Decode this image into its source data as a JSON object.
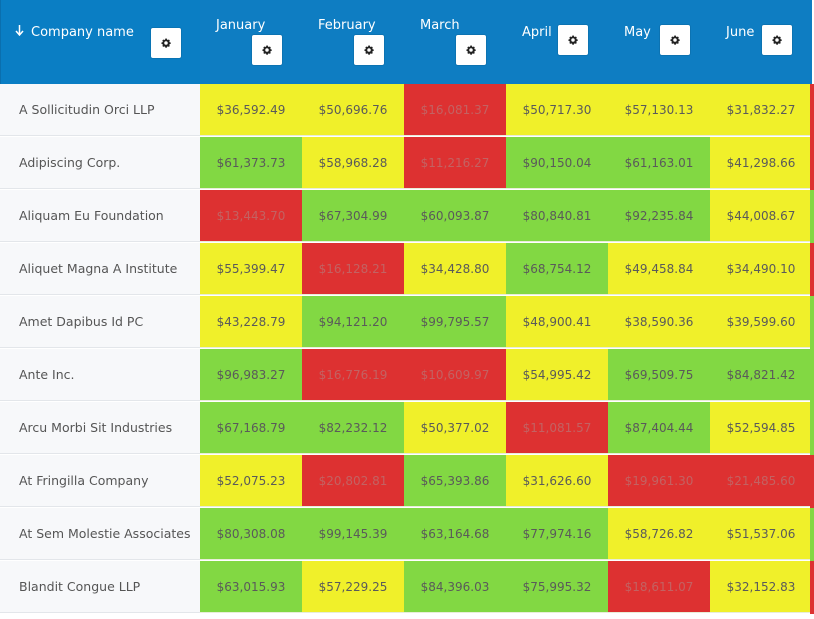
{
  "header": {
    "company_label": "Company name",
    "sort_icon": "arrow-down-icon",
    "gear_icon": "gear-icon",
    "months": [
      "January",
      "February",
      "March",
      "April",
      "May",
      "June"
    ]
  },
  "colors": {
    "header_bg": "#0e7dc2",
    "green": "#82d843",
    "yellow": "#f0f02a",
    "red": "#dd3131"
  },
  "rows": [
    {
      "company": "A Sollicitudin Orci LLP",
      "values": [
        "$36,592.49",
        "$50,696.76",
        "$16,081.37",
        "$50,717.30",
        "$57,130.13",
        "$31,832.27"
      ],
      "status": [
        "yellow",
        "yellow",
        "red",
        "yellow",
        "yellow",
        "yellow"
      ]
    },
    {
      "company": "Adipiscing Corp.",
      "values": [
        "$61,373.73",
        "$58,968.28",
        "$11,216.27",
        "$90,150.04",
        "$61,163.01",
        "$41,298.66"
      ],
      "status": [
        "green",
        "yellow",
        "red",
        "green",
        "green",
        "yellow"
      ]
    },
    {
      "company": "Aliquam Eu Foundation",
      "values": [
        "$13,443.70",
        "$67,304.99",
        "$60,093.87",
        "$80,840.81",
        "$92,235.84",
        "$44,008.67"
      ],
      "status": [
        "red",
        "green",
        "green",
        "green",
        "green",
        "yellow"
      ]
    },
    {
      "company": "Aliquet Magna A Institute",
      "values": [
        "$55,399.47",
        "$16,128.21",
        "$34,428.80",
        "$68,754.12",
        "$49,458.84",
        "$34,490.10"
      ],
      "status": [
        "yellow",
        "red",
        "yellow",
        "green",
        "yellow",
        "yellow"
      ]
    },
    {
      "company": "Amet Dapibus Id PC",
      "values": [
        "$43,228.79",
        "$94,121.20",
        "$99,795.57",
        "$48,900.41",
        "$38,590.36",
        "$39,599.60"
      ],
      "status": [
        "yellow",
        "green",
        "green",
        "yellow",
        "yellow",
        "yellow"
      ]
    },
    {
      "company": "Ante Inc.",
      "values": [
        "$96,983.27",
        "$16,776.19",
        "$10,609.97",
        "$54,995.42",
        "$69,509.75",
        "$84,821.42"
      ],
      "status": [
        "green",
        "red",
        "red",
        "yellow",
        "green",
        "green"
      ]
    },
    {
      "company": "Arcu Morbi Sit Industries",
      "values": [
        "$67,168.79",
        "$82,232.12",
        "$50,377.02",
        "$11,081.57",
        "$87,404.44",
        "$52,594.85"
      ],
      "status": [
        "green",
        "green",
        "yellow",
        "red",
        "green",
        "yellow"
      ]
    },
    {
      "company": "At Fringilla Company",
      "values": [
        "$52,075.23",
        "$20,802.81",
        "$65,393.86",
        "$31,626.60",
        "$19,961.30",
        "$21,485.60"
      ],
      "status": [
        "yellow",
        "red",
        "green",
        "yellow",
        "red",
        "red"
      ]
    },
    {
      "company": "At Sem Molestie Associates",
      "values": [
        "$80,308.08",
        "$99,145.39",
        "$63,164.68",
        "$77,974.16",
        "$58,726.82",
        "$51,537.06"
      ],
      "status": [
        "green",
        "green",
        "green",
        "green",
        "yellow",
        "yellow"
      ]
    },
    {
      "company": "Blandit Congue LLP",
      "values": [
        "$63,015.93",
        "$57,229.25",
        "$84,396.03",
        "$75,995.32",
        "$18,611.07",
        "$32,152.83"
      ],
      "status": [
        "green",
        "yellow",
        "green",
        "green",
        "red",
        "yellow"
      ]
    }
  ],
  "edge_status": [
    "red",
    "red",
    "green",
    "red",
    "green",
    "green",
    "green",
    "red",
    "green",
    "red"
  ]
}
